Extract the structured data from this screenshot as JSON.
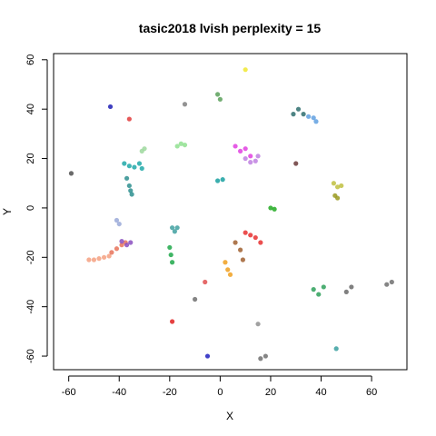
{
  "chart_data": {
    "type": "scatter",
    "title": "tasic2018 lvish perplexity = 15",
    "xlabel": "X",
    "ylabel": "Y",
    "xlim": [
      -66,
      74
    ],
    "ylim": [
      -65.5,
      62.5
    ],
    "xticks": [
      "-60",
      "-40",
      "-20",
      "0",
      "20",
      "40",
      "60"
    ],
    "yticks": [
      "-60",
      "-40",
      "-20",
      "0",
      "20",
      "40",
      "60"
    ],
    "grid": false,
    "legend": "none",
    "series": [
      {
        "color": "#f4a080",
        "x": [
          -52,
          -50,
          -48,
          -46,
          -44
        ],
        "y": [
          -21,
          -21,
          -20.5,
          -20,
          -19.5
        ]
      },
      {
        "color": "#e8735a",
        "x": [
          -43,
          -41,
          -39,
          -37.5
        ],
        "y": [
          -18,
          -16.5,
          -15,
          -14
        ]
      },
      {
        "color": "#8a4fbf",
        "x": [
          -39,
          -37,
          -35.5
        ],
        "y": [
          -13.5,
          -15,
          -14
        ]
      },
      {
        "color": "#9aa9d8",
        "x": [
          -41,
          -40
        ],
        "y": [
          -5,
          -6.5
        ]
      },
      {
        "color": "#20a8a8",
        "x": [
          -38,
          -36,
          -34,
          -32,
          -31
        ],
        "y": [
          18,
          17,
          16.5,
          18,
          16
        ]
      },
      {
        "color": "#2e8f8f",
        "x": [
          -37,
          -36,
          -35.5,
          -35
        ],
        "y": [
          12,
          9,
          7,
          5.5
        ]
      },
      {
        "color": "#9ed89e",
        "x": [
          -31,
          -30
        ],
        "y": [
          23,
          24
        ]
      },
      {
        "color": "#e23b3b",
        "x": [
          -36
        ],
        "y": [
          36
        ]
      },
      {
        "color": "#1f1fb5",
        "x": [
          -43.5
        ],
        "y": [
          41
        ]
      },
      {
        "color": "#505050",
        "x": [
          -59
        ],
        "y": [
          14
        ]
      },
      {
        "color": "#40a0a0",
        "x": [
          -19,
          -18,
          -17
        ],
        "y": [
          -8,
          -9.5,
          -8
        ]
      },
      {
        "color": "#1fa84a",
        "x": [
          -20,
          -19.5,
          -19
        ],
        "y": [
          -16,
          -19,
          -22
        ]
      },
      {
        "color": "#90e090",
        "x": [
          -17,
          -15.5,
          -14
        ],
        "y": [
          25,
          26,
          25.5
        ]
      },
      {
        "color": "#808080",
        "x": [
          -14
        ],
        "y": [
          42
        ]
      },
      {
        "color": "#5aa05a",
        "x": [
          -1,
          0
        ],
        "y": [
          46,
          44
        ]
      },
      {
        "color": "#f0e830",
        "x": [
          10
        ],
        "y": [
          56
        ]
      },
      {
        "color": "#e040e0",
        "x": [
          6,
          8,
          10,
          12
        ],
        "y": [
          25,
          23,
          24,
          21
        ]
      },
      {
        "color": "#c080e0",
        "x": [
          10,
          12,
          14,
          15
        ],
        "y": [
          20,
          18.5,
          19,
          21
        ]
      },
      {
        "color": "#18a0a0",
        "x": [
          -1,
          1
        ],
        "y": [
          11,
          11.5
        ]
      },
      {
        "color": "#22aa22",
        "x": [
          20,
          21.5
        ],
        "y": [
          0,
          -0.5
        ]
      },
      {
        "color": "#e83030",
        "x": [
          10,
          12,
          14,
          16
        ],
        "y": [
          -10,
          -11,
          -12,
          -14
        ]
      },
      {
        "color": "#a06030",
        "x": [
          6,
          8,
          9
        ],
        "y": [
          -14,
          -17,
          -21
        ]
      },
      {
        "color": "#f0a020",
        "x": [
          2,
          3,
          4
        ],
        "y": [
          -22,
          -25,
          -27
        ]
      },
      {
        "color": "#e05050",
        "x": [
          -6
        ],
        "y": [
          -30
        ]
      },
      {
        "color": "#707070",
        "x": [
          -10
        ],
        "y": [
          -37
        ]
      },
      {
        "color": "#e02020",
        "x": [
          -19
        ],
        "y": [
          -46
        ]
      },
      {
        "color": "#2020c0",
        "x": [
          -5
        ],
        "y": [
          -60
        ]
      },
      {
        "color": "#909090",
        "x": [
          15
        ],
        "y": [
          -47
        ]
      },
      {
        "color": "#707070",
        "x": [
          16,
          18
        ],
        "y": [
          -61,
          -60
        ]
      },
      {
        "color": "#2f6f6f",
        "x": [
          29,
          31,
          33
        ],
        "y": [
          38,
          40,
          38
        ]
      },
      {
        "color": "#60a0e0",
        "x": [
          35,
          37,
          38
        ],
        "y": [
          37,
          36.5,
          35
        ]
      },
      {
        "color": "#c0c040",
        "x": [
          45,
          46.5,
          48
        ],
        "y": [
          10,
          8.5,
          9
        ]
      },
      {
        "color": "#9a9a20",
        "x": [
          45.5,
          46.5
        ],
        "y": [
          5,
          4
        ]
      },
      {
        "color": "#6a3a3a",
        "x": [
          30
        ],
        "y": [
          18
        ]
      },
      {
        "color": "#2ea05a",
        "x": [
          37,
          39,
          41
        ],
        "y": [
          -33,
          -35,
          -32
        ]
      },
      {
        "color": "#6a6a6a",
        "x": [
          50,
          52
        ],
        "y": [
          -34,
          -32
        ]
      },
      {
        "color": "#707070",
        "x": [
          66,
          68
        ],
        "y": [
          -31,
          -30
        ]
      },
      {
        "color": "#3aa0a0",
        "x": [
          46
        ],
        "y": [
          -57
        ]
      }
    ]
  }
}
